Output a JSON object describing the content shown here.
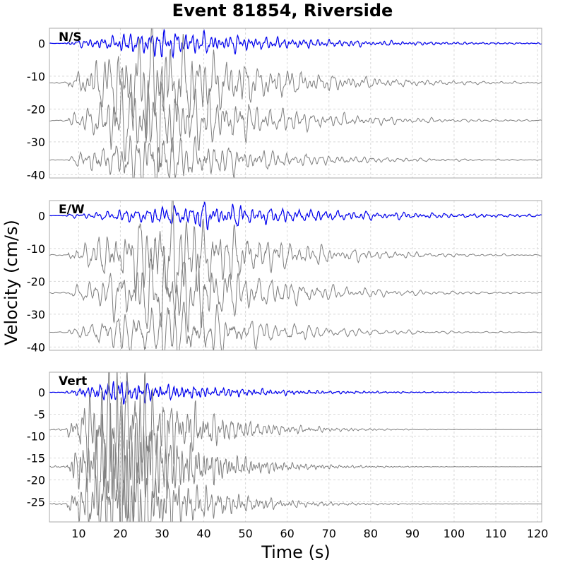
{
  "chart_data": {
    "type": "line",
    "title": "Event 81854, Riverside",
    "xlabel": "Time (s)",
    "ylabel": "Velocity (cm/s)",
    "xlim": [
      3,
      121
    ],
    "xticks": [
      10,
      20,
      30,
      40,
      50,
      60,
      70,
      80,
      90,
      100,
      110,
      120
    ],
    "grid": true,
    "colors": {
      "primary": "#0000ee",
      "secondary": "#808080",
      "grid": "#d8d8d8",
      "frame": "#aaaaaa"
    },
    "panels": [
      {
        "label": "N/S",
        "ylim": [
          -41,
          4.6
        ],
        "yticks": [
          0,
          -10,
          -20,
          -30,
          -40
        ],
        "series": [
          {
            "offset": 0,
            "color": "#0000ee",
            "onset": 6.5,
            "peak_time": 30,
            "peak_amplitude": 3.5,
            "decay": 30,
            "period": 1.6
          },
          {
            "offset": -12,
            "color": "#808080",
            "onset": 7.5,
            "peak_time": 27,
            "peak_amplitude": 16,
            "decay": 22,
            "period": 1.9
          },
          {
            "offset": -23.5,
            "color": "#808080",
            "onset": 7.5,
            "peak_time": 27,
            "peak_amplitude": 13,
            "decay": 22,
            "period": 1.9
          },
          {
            "offset": -35.5,
            "color": "#808080",
            "onset": 7.5,
            "peak_time": 28,
            "peak_amplitude": 11,
            "decay": 22,
            "period": 2.0
          }
        ]
      },
      {
        "label": "E/W",
        "ylim": [
          -41,
          4.6
        ],
        "yticks": [
          0,
          -10,
          -20,
          -30,
          -40
        ],
        "series": [
          {
            "offset": 0,
            "color": "#0000ee",
            "onset": 6.5,
            "peak_time": 40,
            "peak_amplitude": 3.2,
            "decay": 35,
            "period": 1.7
          },
          {
            "offset": -12,
            "color": "#808080",
            "onset": 7.5,
            "peak_time": 33,
            "peak_amplitude": 14,
            "decay": 20,
            "period": 1.9
          },
          {
            "offset": -23.5,
            "color": "#808080",
            "onset": 7.5,
            "peak_time": 33,
            "peak_amplitude": 12,
            "decay": 20,
            "period": 1.9
          },
          {
            "offset": -35.5,
            "color": "#808080",
            "onset": 7.5,
            "peak_time": 33,
            "peak_amplitude": 10,
            "decay": 20,
            "period": 2.0
          }
        ]
      },
      {
        "label": "Vert",
        "ylim": [
          -29.6,
          4.6
        ],
        "yticks": [
          0,
          -5,
          -10,
          -15,
          -20,
          -25
        ],
        "series": [
          {
            "offset": 0,
            "color": "#0000ee",
            "onset": 6.5,
            "peak_time": 20,
            "peak_amplitude": 2.6,
            "decay": 25,
            "period": 1.2
          },
          {
            "offset": -8.5,
            "color": "#808080",
            "onset": 7.3,
            "peak_time": 20,
            "peak_amplitude": 16,
            "decay": 14,
            "period": 1.1
          },
          {
            "offset": -17,
            "color": "#808080",
            "onset": 7.3,
            "peak_time": 20,
            "peak_amplitude": 14,
            "decay": 14,
            "period": 1.2
          },
          {
            "offset": -25.5,
            "color": "#808080",
            "onset": 7.3,
            "peak_time": 21,
            "peak_amplitude": 12,
            "decay": 14,
            "period": 1.3
          }
        ]
      }
    ]
  }
}
